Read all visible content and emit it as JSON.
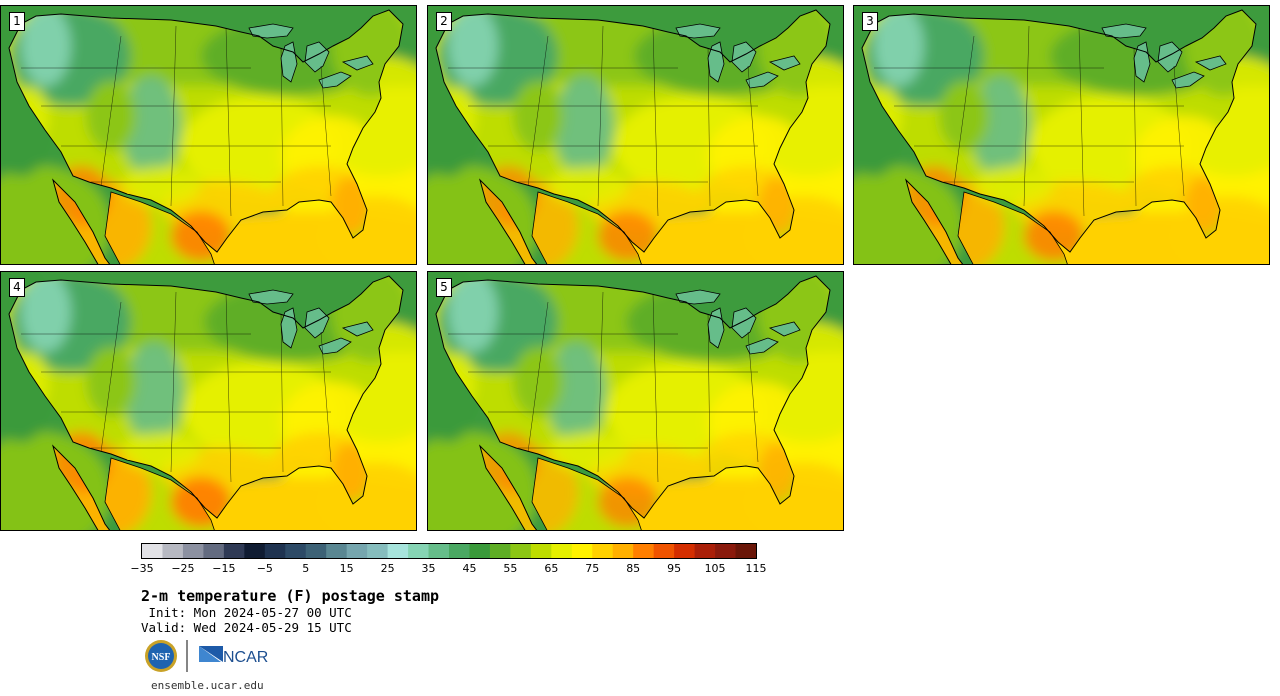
{
  "panels": [
    {
      "label": "1"
    },
    {
      "label": "2"
    },
    {
      "label": "3"
    },
    {
      "label": "4"
    },
    {
      "label": "5"
    }
  ],
  "colorbar": {
    "colors": [
      "#e2e2e6",
      "#b7b9c2",
      "#8c91a1",
      "#636b80",
      "#2f3a55",
      "#101c32",
      "#1f3350",
      "#2d4a66",
      "#3d6276",
      "#5a8792",
      "#76a6ae",
      "#86bdbd",
      "#a7e4dc",
      "#86d4b4",
      "#66bd8a",
      "#4aa862",
      "#3a9a3a",
      "#5fae25",
      "#8cc614",
      "#bedd00",
      "#e5f000",
      "#fff200",
      "#ffd100",
      "#ffb000",
      "#ff7f00",
      "#f05400",
      "#d42e00",
      "#aa1f08",
      "#8a1a0c",
      "#6a1608"
    ],
    "ticks": [
      "−35",
      "−25",
      "−15",
      "−5",
      "5",
      "15",
      "25",
      "35",
      "45",
      "55",
      "65",
      "75",
      "85",
      "95",
      "105",
      "115"
    ]
  },
  "title": "2-m temperature (F) postage stamp",
  "init": " Init: Mon 2024-05-27 00 UTC",
  "valid": "Valid: Wed 2024-05-29 15 UTC",
  "logos": {
    "nsf": "NSF",
    "ncar": "NCAR"
  },
  "footer": "ensemble.ucar.edu"
}
